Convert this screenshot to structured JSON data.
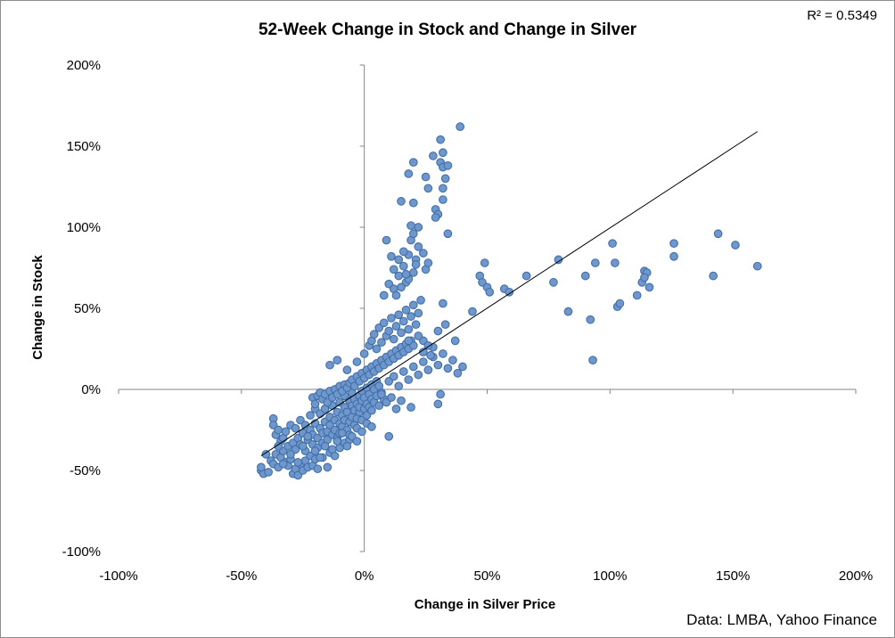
{
  "chart_data": {
    "type": "scatter",
    "title": "52-Week Change in Stock and Change in Silver",
    "xlabel": "Change in Silver Price",
    "ylabel": "Change in Stock",
    "xlim": [
      -100,
      200
    ],
    "ylim": [
      -100,
      200
    ],
    "x_ticks": [
      "-100%",
      "-50%",
      "0%",
      "50%",
      "100%",
      "150%",
      "200%"
    ],
    "y_ticks": [
      "-100%",
      "-50%",
      "0%",
      "50%",
      "100%",
      "150%",
      "200%"
    ],
    "r_squared_label": "R² = 0.5349",
    "source": "Data: LMBA, Yahoo Finance",
    "grid": false,
    "marker_color": "#6f97cc",
    "marker_edge": "#3f6faa",
    "trendline": {
      "x": [
        -42,
        160
      ],
      "y": [
        -41,
        159
      ],
      "color": "#000000"
    },
    "points": [
      [
        -42,
        -50
      ],
      [
        -41,
        -52
      ],
      [
        -39,
        -51
      ],
      [
        -38,
        -44
      ],
      [
        -37,
        -46
      ],
      [
        -36,
        -40
      ],
      [
        -35,
        -48
      ],
      [
        -34,
        -42
      ],
      [
        -33,
        -38
      ],
      [
        -32,
        -45
      ],
      [
        -31,
        -47
      ],
      [
        -30,
        -43
      ],
      [
        -29,
        -52
      ],
      [
        -28,
        -49
      ],
      [
        -27,
        -53
      ],
      [
        -26,
        -46
      ],
      [
        -25,
        -50
      ],
      [
        -24,
        -44
      ],
      [
        -23,
        -48
      ],
      [
        -22,
        -41
      ],
      [
        -21,
        -47
      ],
      [
        -20,
        -43
      ],
      [
        -19,
        -49
      ],
      [
        -17,
        -42
      ],
      [
        -15,
        -48
      ],
      [
        -14,
        -39
      ],
      [
        -12,
        -41
      ],
      [
        -10,
        -36
      ],
      [
        -8,
        -33
      ],
      [
        -6,
        -31
      ],
      [
        -37,
        -18
      ],
      [
        -37,
        -22
      ],
      [
        -36,
        -28
      ],
      [
        -35,
        -25
      ],
      [
        -34,
        -32
      ],
      [
        -33,
        -30
      ],
      [
        -32,
        -26
      ],
      [
        -31,
        -35
      ],
      [
        -30,
        -22
      ],
      [
        -29,
        -33
      ],
      [
        -28,
        -24
      ],
      [
        -28,
        -37
      ],
      [
        -27,
        -30
      ],
      [
        -26,
        -19
      ],
      [
        -26,
        -34
      ],
      [
        -25,
        -27
      ],
      [
        -24,
        -22
      ],
      [
        -24,
        -38
      ],
      [
        -23,
        -31
      ],
      [
        -22,
        -25
      ],
      [
        -22,
        -16
      ],
      [
        -21,
        -34
      ],
      [
        -21,
        -28
      ],
      [
        -20,
        -21
      ],
      [
        -20,
        -12
      ],
      [
        -19,
        -30
      ],
      [
        -19,
        -36
      ],
      [
        -18,
        -24
      ],
      [
        -18,
        -15
      ],
      [
        -17,
        -27
      ],
      [
        -17,
        -33
      ],
      [
        -16,
        -20
      ],
      [
        -16,
        -12
      ],
      [
        -15,
        -26
      ],
      [
        -15,
        -31
      ],
      [
        -14,
        -17
      ],
      [
        -14,
        -22
      ],
      [
        -13,
        -28
      ],
      [
        -13,
        -10
      ],
      [
        -12,
        -19
      ],
      [
        -12,
        -25
      ],
      [
        -11,
        -14
      ],
      [
        -11,
        -30
      ],
      [
        -10,
        -21
      ],
      [
        -10,
        -8
      ],
      [
        -10,
        -27
      ],
      [
        -9,
        -16
      ],
      [
        -9,
        -23
      ],
      [
        -8,
        -11
      ],
      [
        -8,
        -19
      ],
      [
        -8,
        -4
      ],
      [
        -7,
        -25
      ],
      [
        -7,
        -14
      ],
      [
        -6,
        -20
      ],
      [
        -6,
        -7
      ],
      [
        -6,
        -28
      ],
      [
        -5,
        -17
      ],
      [
        -5,
        -10
      ],
      [
        -5,
        -2
      ],
      [
        -4,
        -22
      ],
      [
        -4,
        -13
      ],
      [
        -4,
        -6
      ],
      [
        -3,
        -18
      ],
      [
        -3,
        -9
      ],
      [
        -3,
        -24
      ],
      [
        -2,
        -14
      ],
      [
        -2,
        -4
      ],
      [
        -2,
        -11
      ],
      [
        -1,
        -7
      ],
      [
        -1,
        -19
      ],
      [
        -1,
        -1
      ],
      [
        0,
        -12
      ],
      [
        0,
        -5
      ],
      [
        1,
        -9
      ],
      [
        1,
        1
      ],
      [
        1,
        -16
      ],
      [
        2,
        -3
      ],
      [
        2,
        -11
      ],
      [
        3,
        -6
      ],
      [
        3,
        3
      ],
      [
        3,
        -13
      ],
      [
        4,
        0
      ],
      [
        4,
        -8
      ],
      [
        5,
        5
      ],
      [
        5,
        -4
      ],
      [
        6,
        -10
      ],
      [
        6,
        2
      ],
      [
        7,
        -2
      ],
      [
        8,
        -6
      ],
      [
        -21,
        -5
      ],
      [
        -20,
        -9
      ],
      [
        -19,
        -4
      ],
      [
        -18,
        -2
      ],
      [
        -17,
        -6
      ],
      [
        -16,
        -3
      ],
      [
        -15,
        -8
      ],
      [
        -14,
        -1
      ],
      [
        -13,
        -5
      ],
      [
        -12,
        0
      ],
      [
        -11,
        -3
      ],
      [
        -10,
        2
      ],
      [
        -9,
        -1
      ],
      [
        -8,
        3
      ],
      [
        -7,
        1
      ],
      [
        -6,
        4
      ],
      [
        -5,
        6
      ],
      [
        -4,
        2
      ],
      [
        -3,
        8
      ],
      [
        -2,
        5
      ],
      [
        -1,
        10
      ],
      [
        0,
        7
      ],
      [
        1,
        12
      ],
      [
        2,
        9
      ],
      [
        3,
        14
      ],
      [
        4,
        11
      ],
      [
        5,
        16
      ],
      [
        6,
        13
      ],
      [
        7,
        18
      ],
      [
        8,
        15
      ],
      [
        9,
        20
      ],
      [
        10,
        17
      ],
      [
        11,
        22
      ],
      [
        12,
        19
      ],
      [
        13,
        24
      ],
      [
        14,
        21
      ],
      [
        15,
        26
      ],
      [
        16,
        23
      ],
      [
        17,
        28
      ],
      [
        18,
        25
      ],
      [
        19,
        30
      ],
      [
        20,
        27
      ],
      [
        -14,
        15
      ],
      [
        -11,
        18
      ],
      [
        -7,
        12
      ],
      [
        -3,
        17
      ],
      [
        0,
        22
      ],
      [
        2,
        27
      ],
      [
        3,
        30
      ],
      [
        4,
        34
      ],
      [
        5,
        25
      ],
      [
        6,
        38
      ],
      [
        7,
        29
      ],
      [
        8,
        41
      ],
      [
        9,
        33
      ],
      [
        10,
        36
      ],
      [
        11,
        44
      ],
      [
        12,
        31
      ],
      [
        13,
        39
      ],
      [
        14,
        46
      ],
      [
        15,
        35
      ],
      [
        16,
        42
      ],
      [
        17,
        49
      ],
      [
        18,
        37
      ],
      [
        19,
        45
      ],
      [
        20,
        52
      ],
      [
        21,
        40
      ],
      [
        22,
        47
      ],
      [
        23,
        55
      ],
      [
        10,
        5
      ],
      [
        12,
        8
      ],
      [
        14,
        2
      ],
      [
        16,
        11
      ],
      [
        18,
        6
      ],
      [
        20,
        14
      ],
      [
        22,
        9
      ],
      [
        24,
        17
      ],
      [
        26,
        12
      ],
      [
        28,
        20
      ],
      [
        30,
        15
      ],
      [
        32,
        22
      ],
      [
        34,
        13
      ],
      [
        36,
        18
      ],
      [
        38,
        10
      ],
      [
        40,
        14
      ],
      [
        31,
        -3
      ],
      [
        19,
        -11
      ],
      [
        10,
        -29
      ],
      [
        24,
        23
      ],
      [
        28,
        26
      ],
      [
        30,
        -9
      ],
      [
        8,
        58
      ],
      [
        10,
        65
      ],
      [
        12,
        62
      ],
      [
        14,
        70
      ],
      [
        16,
        76
      ],
      [
        17,
        66
      ],
      [
        18,
        83
      ],
      [
        19,
        92
      ],
      [
        20,
        72
      ],
      [
        21,
        80
      ],
      [
        22,
        88
      ],
      [
        12,
        74
      ],
      [
        14,
        80
      ],
      [
        16,
        85
      ],
      [
        18,
        68
      ],
      [
        20,
        96
      ],
      [
        24,
        84
      ],
      [
        25,
        74
      ],
      [
        26,
        78
      ],
      [
        9,
        92
      ],
      [
        11,
        82
      ],
      [
        13,
        58
      ],
      [
        15,
        63
      ],
      [
        17,
        71
      ],
      [
        19,
        101
      ],
      [
        21,
        77
      ],
      [
        22,
        100
      ],
      [
        15,
        116
      ],
      [
        18,
        133
      ],
      [
        20,
        115
      ],
      [
        20,
        140
      ],
      [
        25,
        131
      ],
      [
        26,
        124
      ],
      [
        28,
        144
      ],
      [
        29,
        111
      ],
      [
        30,
        108
      ],
      [
        31,
        140
      ],
      [
        32,
        146
      ],
      [
        31,
        154
      ],
      [
        32,
        137
      ],
      [
        33,
        130
      ],
      [
        34,
        138
      ],
      [
        32,
        124
      ],
      [
        32,
        117
      ],
      [
        39,
        162
      ],
      [
        34,
        96
      ],
      [
        29,
        106
      ],
      [
        7,
        -3
      ],
      [
        9,
        -8
      ],
      [
        11,
        -5
      ],
      [
        13,
        -12
      ],
      [
        15,
        -7
      ],
      [
        24,
        30
      ],
      [
        26,
        27
      ],
      [
        33,
        40
      ],
      [
        30,
        36
      ],
      [
        37,
        30
      ],
      [
        27,
        21
      ],
      [
        22,
        33
      ],
      [
        18,
        30
      ],
      [
        32,
        53
      ],
      [
        44,
        48
      ],
      [
        47,
        70
      ],
      [
        48,
        66
      ],
      [
        49,
        78
      ],
      [
        50,
        63
      ],
      [
        51,
        60
      ],
      [
        57,
        62
      ],
      [
        59,
        60
      ],
      [
        66,
        70
      ],
      [
        77,
        66
      ],
      [
        79,
        80
      ],
      [
        83,
        48
      ],
      [
        90,
        70
      ],
      [
        92,
        43
      ],
      [
        93,
        18
      ],
      [
        94,
        78
      ],
      [
        101,
        90
      ],
      [
        102,
        78
      ],
      [
        103,
        51
      ],
      [
        104,
        53
      ],
      [
        111,
        58
      ],
      [
        113,
        66
      ],
      [
        114,
        73
      ],
      [
        115,
        72
      ],
      [
        116,
        63
      ],
      [
        126,
        82
      ],
      [
        126,
        90
      ],
      [
        142,
        70
      ],
      [
        144,
        96
      ],
      [
        151,
        89
      ],
      [
        160,
        76
      ],
      [
        114,
        69
      ],
      [
        -42,
        -48
      ],
      [
        -40,
        -40
      ],
      [
        -35,
        -35
      ],
      [
        -33,
        -46
      ],
      [
        -30,
        -40
      ],
      [
        -27,
        -45
      ],
      [
        -25,
        -35
      ],
      [
        -23,
        -29
      ],
      [
        -20,
        -38
      ],
      [
        -18,
        -42
      ],
      [
        -16,
        -35
      ],
      [
        -13,
        -37
      ],
      [
        -11,
        -32
      ],
      [
        -9,
        -27
      ],
      [
        -7,
        -35
      ],
      [
        -5,
        -29
      ],
      [
        -3,
        -32
      ],
      [
        -1,
        -26
      ],
      [
        1,
        -21
      ],
      [
        3,
        -23
      ]
    ]
  }
}
